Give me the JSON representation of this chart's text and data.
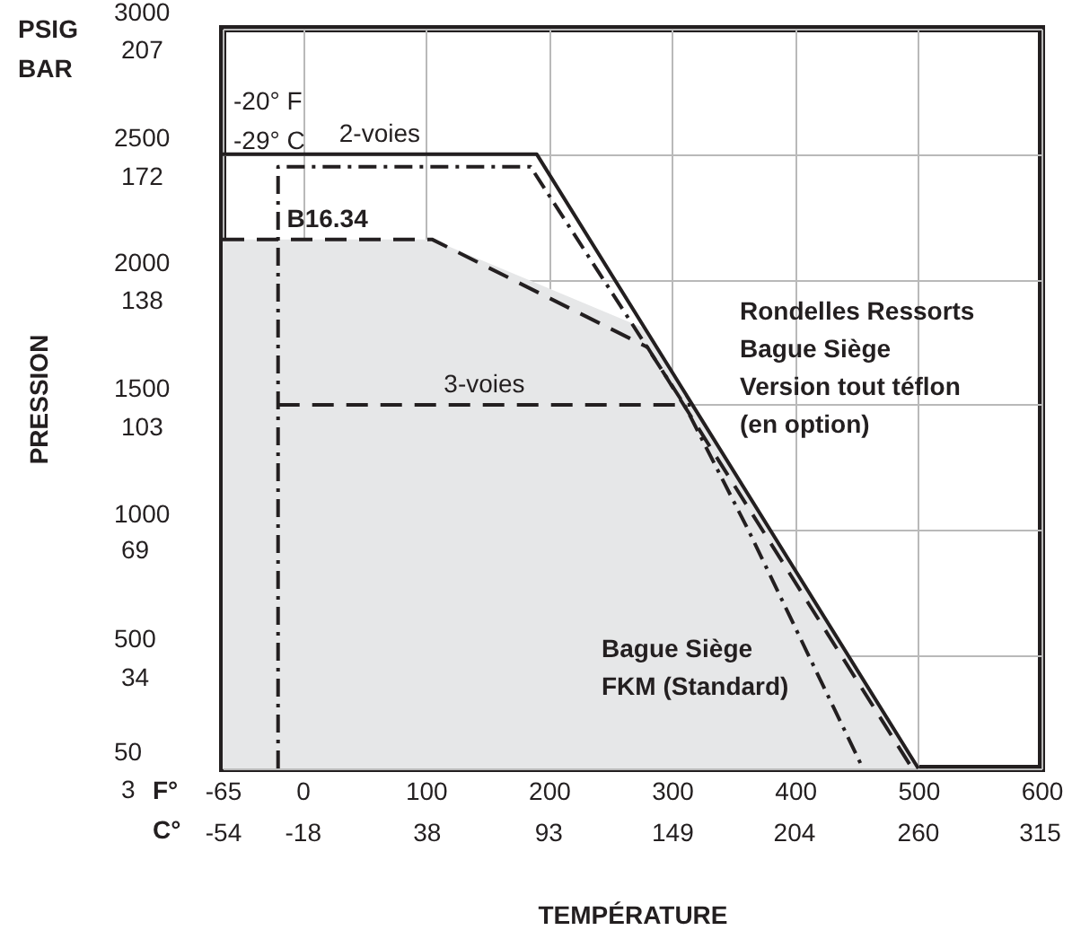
{
  "chart_data": {
    "type": "line",
    "xlabel": "TEMPÉRATURE",
    "ylabel": "PRESSION",
    "xlim": [
      -65,
      600
    ],
    "ylim": [
      50,
      3000
    ],
    "xticks": [
      -65,
      0,
      100,
      200,
      300,
      400,
      500,
      600
    ],
    "yticks": [
      50,
      500,
      1000,
      1500,
      2000,
      2500,
      3000
    ],
    "x2lim": [
      -54,
      316
    ],
    "x2ticks": [
      -54,
      -18,
      38,
      93,
      149,
      204,
      260,
      315
    ],
    "y2lim": [
      3,
      207
    ],
    "y2ticks": [
      3,
      34,
      69,
      103,
      138,
      172,
      207
    ],
    "grid": true,
    "series": [
      {
        "type": "area",
        "color": "#e6e7e8",
        "x": [
          -65,
          105,
          280,
          316,
          500
        ],
        "values": [
          2160,
          2160,
          1800,
          1500,
          50
        ]
      },
      {
        "name": "2-voies",
        "color": "#231f20",
        "line_style": "solid",
        "x": [
          -65,
          190,
          500
        ],
        "values": [
          2500,
          2500,
          50
        ]
      },
      {
        "color": "#231f20",
        "line_style": "dashdot",
        "x": [
          -20,
          -20,
          185,
          310,
          362,
          455
        ],
        "values": [
          50,
          2450,
          2450,
          1500,
          1000,
          50
        ]
      },
      {
        "name": "B16.34",
        "color": "#231f20",
        "line_style": "dashed",
        "x": [
          -65,
          105,
          280,
          495
        ],
        "values": [
          2160,
          2160,
          1730,
          50
        ]
      },
      {
        "name": "3-voies",
        "color": "#231f20",
        "line_style": "dashed",
        "x": [
          -20,
          315
        ],
        "values": [
          1500,
          1500
        ]
      }
    ],
    "annotations": [
      "PSIG\nBAR",
      "F°\nC°",
      "-20° F\n-29° C",
      "Rondelles Ressorts\nBague Siège\nVersion tout téflon\n(en option)",
      "Bague Siège\nFKM (Standard)"
    ]
  }
}
